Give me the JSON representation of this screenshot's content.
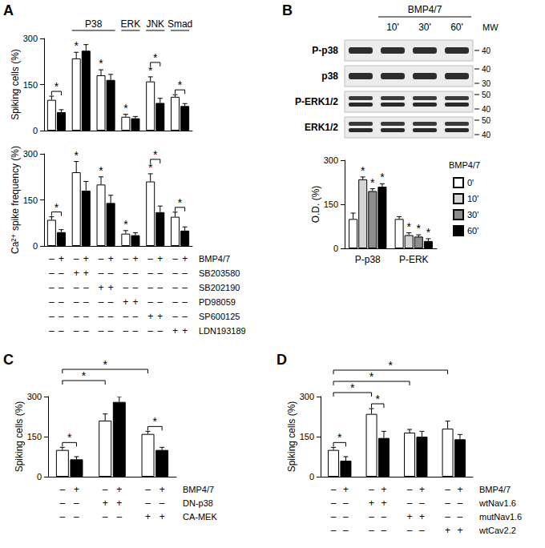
{
  "chart_data": [
    {
      "type": "bar",
      "panel": "A",
      "y_label": "Spiking cells (%)",
      "categories": [
        null,
        null,
        null,
        null,
        null,
        null
      ],
      "series": [
        {
          "color": "#ffffff",
          "values": [
            100,
            235,
            180,
            45,
            160,
            110
          ],
          "errors": [
            12,
            20,
            18,
            8,
            15,
            7
          ]
        },
        {
          "color": "#000000",
          "values": [
            60,
            260,
            165,
            40,
            90,
            80
          ],
          "errors": [
            8,
            20,
            18,
            6,
            15,
            8
          ]
        }
      ],
      "ylim": [
        0,
        300
      ],
      "yticks": [
        0,
        150,
        300
      ],
      "grid": false,
      "group_headers": [
        {
          "label": "P38",
          "from": 1,
          "to": 2
        },
        {
          "label": "ERK",
          "from": 3,
          "to": 3
        },
        {
          "label": "JNK",
          "from": 4,
          "to": 4
        },
        {
          "label": "Smad",
          "from": 5,
          "to": 5
        }
      ],
      "significance": {
        "marks": [
          {
            "at": [
              1,
              0
            ],
            "label": "*"
          },
          {
            "at": [
              2,
              0
            ],
            "label": "*"
          },
          {
            "at": [
              3,
              0
            ],
            "label": "*"
          },
          {
            "at": [
              4,
              0
            ],
            "label": "*"
          }
        ],
        "brackets": [
          {
            "from": [
              0,
              0
            ],
            "to": [
              0,
              1
            ],
            "label": "*"
          },
          {
            "from": [
              4,
              0
            ],
            "to": [
              4,
              1
            ],
            "label": "*"
          },
          {
            "from": [
              5,
              0
            ],
            "to": [
              5,
              1
            ],
            "label": "*"
          }
        ]
      }
    },
    {
      "type": "bar",
      "y_label": "Ca²⁺ spike frequency (%)",
      "categories": [
        null,
        null,
        null,
        null,
        null,
        null
      ],
      "series": [
        {
          "color": "#ffffff",
          "values": [
            85,
            240,
            200,
            40,
            210,
            95
          ],
          "errors": [
            10,
            35,
            25,
            10,
            25,
            15
          ]
        },
        {
          "color": "#000000",
          "values": [
            45,
            180,
            140,
            35,
            110,
            50
          ],
          "errors": [
            8,
            30,
            25,
            8,
            20,
            12
          ]
        }
      ],
      "ylim": [
        0,
        300
      ],
      "yticks": [
        0,
        150,
        300
      ],
      "grid": false,
      "significance": {
        "marks": [
          {
            "at": [
              1,
              0
            ],
            "label": "*"
          },
          {
            "at": [
              2,
              0
            ],
            "label": "*"
          },
          {
            "at": [
              3,
              0
            ],
            "label": "*"
          },
          {
            "at": [
              4,
              0
            ],
            "label": "*"
          }
        ],
        "brackets": [
          {
            "from": [
              0,
              0
            ],
            "to": [
              0,
              1
            ],
            "label": "*"
          },
          {
            "from": [
              4,
              0
            ],
            "to": [
              4,
              1
            ],
            "label": "*"
          },
          {
            "from": [
              5,
              0
            ],
            "to": [
              5,
              1
            ],
            "label": "*"
          }
        ]
      },
      "conditions": [
        {
          "label": "BMP4/7",
          "signs": [
            "–",
            "+",
            "–",
            "+",
            "–",
            "+",
            "–",
            "+",
            "–",
            "+",
            "–",
            "+"
          ]
        },
        {
          "label": "SB203580",
          "signs": [
            "–",
            "–",
            "+",
            "+",
            "–",
            "–",
            "–",
            "–",
            "–",
            "–",
            "–",
            "–"
          ]
        },
        {
          "label": "SB202190",
          "signs": [
            "–",
            "–",
            "–",
            "–",
            "+",
            "+",
            "–",
            "–",
            "–",
            "–",
            "–",
            "–"
          ]
        },
        {
          "label": "PD98059",
          "signs": [
            "–",
            "–",
            "–",
            "–",
            "–",
            "–",
            "+",
            "+",
            "–",
            "–",
            "–",
            "–"
          ]
        },
        {
          "label": "SP600125",
          "signs": [
            "–",
            "–",
            "–",
            "–",
            "–",
            "–",
            "–",
            "–",
            "+",
            "+",
            "–",
            "–"
          ]
        },
        {
          "label": "LDN193189",
          "signs": [
            "–",
            "–",
            "–",
            "–",
            "–",
            "–",
            "–",
            "–",
            "–",
            "–",
            "+",
            "+"
          ]
        }
      ]
    },
    {
      "type": "bar",
      "panel": "B",
      "y_label": "O.D. (%)",
      "categories": [
        "P-p38",
        "P-ERK"
      ],
      "series": [
        {
          "name": "0'",
          "color": "#ffffff",
          "values": [
            100,
            100
          ],
          "errors": [
            20,
            8
          ]
        },
        {
          "name": "10'",
          "color": "#d4d4d4",
          "values": [
            235,
            45
          ],
          "errors": [
            8,
            8
          ]
        },
        {
          "name": "30'",
          "color": "#8c8c8c",
          "values": [
            195,
            40
          ],
          "errors": [
            8,
            6
          ]
        },
        {
          "name": "60'",
          "color": "#000000",
          "values": [
            210,
            25
          ],
          "errors": [
            10,
            8
          ]
        }
      ],
      "legend": "right",
      "legend_title": "BMP4/7",
      "ylim": [
        0,
        300
      ],
      "yticks": [
        0,
        150,
        300
      ],
      "grid": false,
      "significance": {
        "marks": [
          {
            "at": [
              0,
              1
            ],
            "label": "*"
          },
          {
            "at": [
              0,
              2
            ],
            "label": "*"
          },
          {
            "at": [
              0,
              3
            ],
            "label": "*"
          },
          {
            "at": [
              1,
              1
            ],
            "label": "*"
          },
          {
            "at": [
              1,
              2
            ],
            "label": "*"
          },
          {
            "at": [
              1,
              3
            ],
            "label": "*"
          }
        ],
        "brackets": []
      }
    },
    {
      "type": "bar",
      "panel": "C",
      "y_label": "Spiking cells (%)",
      "categories": [
        null,
        null,
        null
      ],
      "series": [
        {
          "color": "#ffffff",
          "values": [
            100,
            210,
            160
          ],
          "errors": [
            10,
            25,
            10
          ]
        },
        {
          "color": "#000000",
          "values": [
            65,
            280,
            100
          ],
          "errors": [
            10,
            20,
            10
          ]
        }
      ],
      "ylim": [
        0,
        300
      ],
      "yticks": [
        0,
        150,
        300
      ],
      "grid": false,
      "significance": {
        "marks": [],
        "brackets": [
          {
            "from": [
              0,
              0
            ],
            "to": [
              0,
              1
            ],
            "label": "*"
          },
          {
            "from": [
              2,
              0
            ],
            "to": [
              2,
              1
            ],
            "label": "*"
          },
          {
            "from": [
              0,
              0
            ],
            "to": [
              1,
              0
            ],
            "label": "*"
          },
          {
            "from": [
              0,
              0
            ],
            "to": [
              2,
              0
            ],
            "label": "*"
          }
        ]
      },
      "conditions": [
        {
          "label": "BMP4/7",
          "signs": [
            "–",
            "+",
            "–",
            "+",
            "–",
            "+"
          ]
        },
        {
          "label": "DN-p38",
          "signs": [
            "–",
            "–",
            "+",
            "+",
            "–",
            "–"
          ]
        },
        {
          "label": "CA-MEK",
          "signs": [
            "–",
            "–",
            "–",
            "–",
            "+",
            "+"
          ]
        }
      ]
    },
    {
      "type": "bar",
      "panel": "D",
      "y_label": "Spiking cells (%)",
      "categories": [
        null,
        null,
        null,
        null
      ],
      "series": [
        {
          "color": "#ffffff",
          "values": [
            100,
            235,
            165,
            180
          ],
          "errors": [
            10,
            20,
            12,
            28
          ]
        },
        {
          "color": "#000000",
          "values": [
            60,
            145,
            150,
            140
          ],
          "errors": [
            15,
            25,
            20,
            18
          ]
        }
      ],
      "ylim": [
        0,
        300
      ],
      "yticks": [
        0,
        150,
        300
      ],
      "grid": false,
      "significance": {
        "marks": [],
        "brackets": [
          {
            "from": [
              0,
              0
            ],
            "to": [
              0,
              1
            ],
            "label": "*"
          },
          {
            "from": [
              1,
              0
            ],
            "to": [
              1,
              1
            ],
            "label": "*"
          },
          {
            "from": [
              0,
              0
            ],
            "to": [
              1,
              0
            ],
            "label": "*"
          },
          {
            "from": [
              0,
              0
            ],
            "to": [
              2,
              0
            ],
            "label": "*"
          },
          {
            "from": [
              0,
              0
            ],
            "to": [
              3,
              0
            ],
            "label": "*"
          }
        ]
      },
      "conditions": [
        {
          "label": "BMP4/7",
          "signs": [
            "–",
            "+",
            "–",
            "+",
            "–",
            "+",
            "–",
            "+"
          ]
        },
        {
          "label": "wtNav1.6",
          "signs": [
            "–",
            "–",
            "+",
            "+",
            "–",
            "–",
            "–",
            "–"
          ]
        },
        {
          "label": "mutNav1.6",
          "signs": [
            "–",
            "–",
            "–",
            "–",
            "+",
            "+",
            "–",
            "–"
          ]
        },
        {
          "label": "wtCav2.2",
          "signs": [
            "–",
            "–",
            "–",
            "–",
            "–",
            "–",
            "+",
            "+"
          ]
        }
      ]
    }
  ],
  "blot": {
    "treatment": "BMP4/7",
    "lanes": [
      null,
      "10'",
      "30'",
      "60'"
    ],
    "mw_title": "MW",
    "rows": [
      {
        "label": "P-p38",
        "mw": [
          40
        ],
        "bands": 1
      },
      {
        "label": "p38",
        "mw": [
          40,
          30
        ],
        "bands": 1
      },
      {
        "label": "P-ERK1/2",
        "mw": [
          50,
          40
        ],
        "bands": 2
      },
      {
        "label": "ERK1/2",
        "mw": [
          50,
          40
        ],
        "bands": 2
      }
    ]
  }
}
